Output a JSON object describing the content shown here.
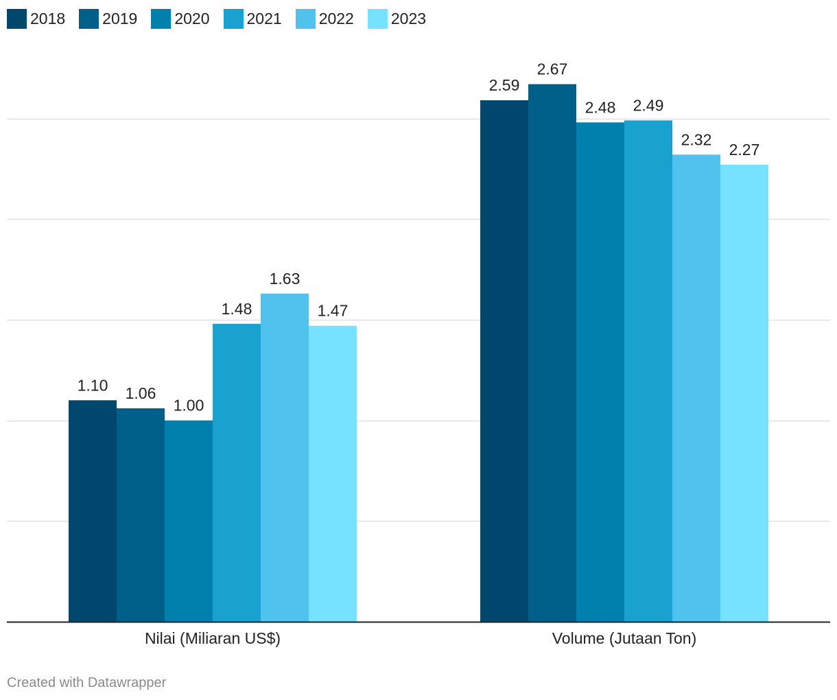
{
  "chart_data": {
    "type": "bar",
    "title": "",
    "xlabel": "",
    "ylabel": "",
    "ylim": [
      0,
      2.5
    ],
    "gridlines": [
      0.5,
      1.0,
      1.5,
      2.0,
      2.5
    ],
    "categories": [
      "Nilai (Miliaran US$)",
      "Volume (Jutaan Ton)"
    ],
    "series": [
      {
        "name": "2018",
        "color": "#00476e",
        "values": [
          1.1,
          2.59
        ],
        "labels": [
          "1.10",
          "2.59"
        ]
      },
      {
        "name": "2019",
        "color": "#006089",
        "values": [
          1.06,
          2.67
        ],
        "labels": [
          "1.06",
          "2.67"
        ]
      },
      {
        "name": "2020",
        "color": "#0081ad",
        "values": [
          1.0,
          2.48
        ],
        "labels": [
          "1.00",
          "2.48"
        ]
      },
      {
        "name": "2021",
        "color": "#19a2cf",
        "values": [
          1.48,
          2.49
        ],
        "labels": [
          "1.48",
          "2.49"
        ]
      },
      {
        "name": "2022",
        "color": "#4fc3ed",
        "values": [
          1.63,
          2.32
        ],
        "labels": [
          "1.63",
          "2.32"
        ]
      },
      {
        "name": "2023",
        "color": "#76e2ff",
        "values": [
          1.47,
          2.27
        ],
        "labels": [
          "1.47",
          "2.27"
        ]
      }
    ],
    "legend_position": "top-left"
  },
  "footer": {
    "credit": "Created with Datawrapper"
  }
}
